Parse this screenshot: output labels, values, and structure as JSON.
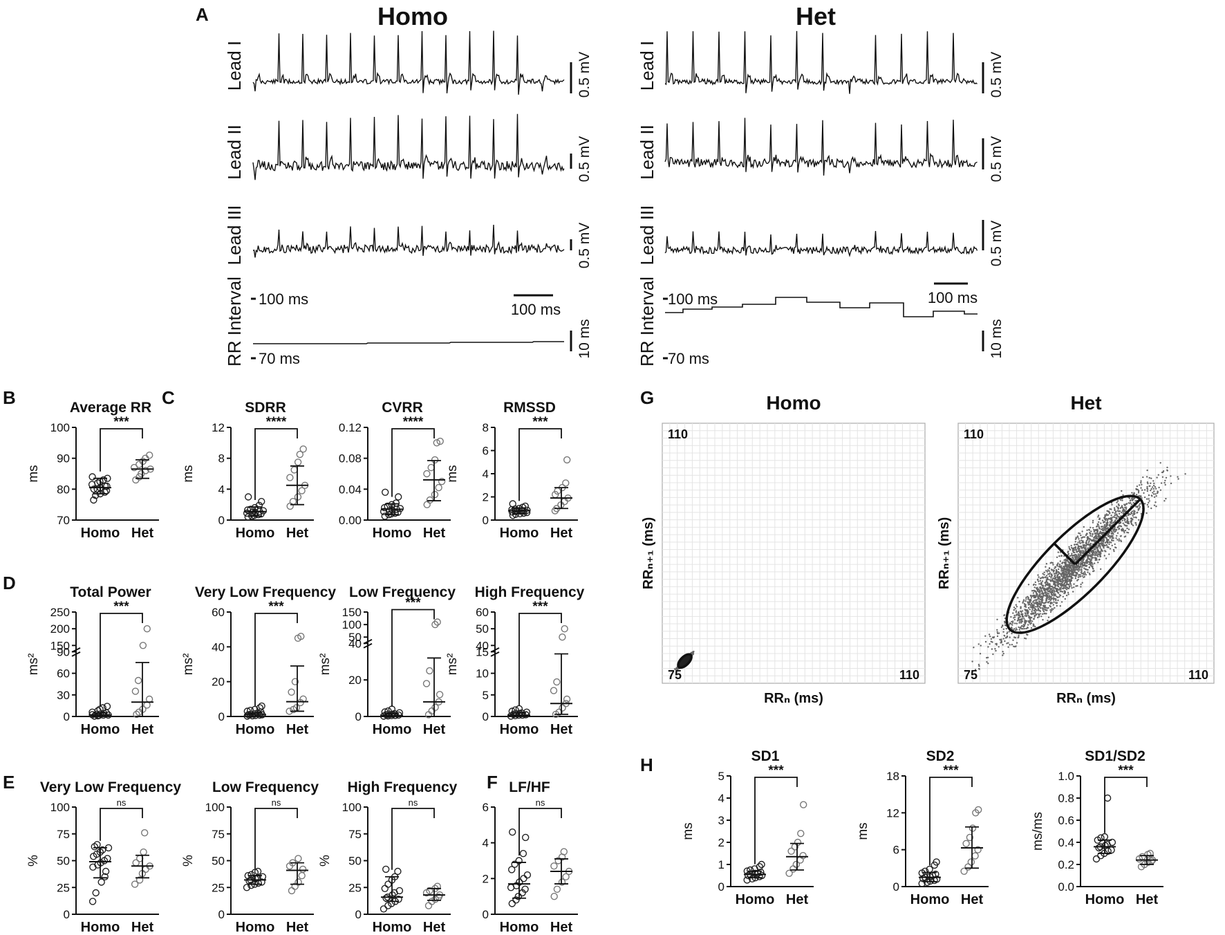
{
  "panel_letters": [
    "A",
    "B",
    "C",
    "D",
    "E",
    "F",
    "G",
    "H"
  ],
  "ecg": {
    "groups": [
      "Homo",
      "Het"
    ],
    "leads": [
      "Lead I",
      "Lead II",
      "Lead III"
    ],
    "rr_label": "RR Interval",
    "scale_mv": "0.5 mV",
    "scale_time": "100 ms",
    "scale_rr": "10 ms",
    "rr_top": "100 ms",
    "rr_bottom": "70 ms"
  },
  "chart_data": [
    {
      "id": "B",
      "type": "scatter",
      "title": "Average RR",
      "ylabel": "ms",
      "categories": [
        "Homo",
        "Het"
      ],
      "yticks": [
        "70",
        "80",
        "90",
        "100"
      ],
      "ylim": [
        70,
        100
      ],
      "significance": "***",
      "groups": [
        {
          "name": "Homo",
          "mean": 80.5,
          "sd_low": 78.5,
          "sd_high": 83.5,
          "points": [
            76.5,
            78,
            78.5,
            79,
            79.5,
            80,
            80,
            80.5,
            81,
            81,
            81.5,
            82,
            82.5,
            83,
            83.5,
            84
          ]
        },
        {
          "name": "Het",
          "mean": 86.5,
          "sd_low": 83.5,
          "sd_high": 89.5,
          "points": [
            83,
            84,
            85,
            86,
            86.5,
            87,
            88,
            89,
            90,
            91
          ]
        }
      ]
    },
    {
      "id": "SDRR",
      "type": "scatter",
      "title": "SDRR",
      "ylabel": "ms",
      "categories": [
        "Homo",
        "Het"
      ],
      "yticks": [
        "0",
        "4",
        "8",
        "12"
      ],
      "ylim": [
        0,
        12
      ],
      "significance": "****",
      "groups": [
        {
          "name": "Homo",
          "mean": 1.1,
          "sd_low": 0.5,
          "sd_high": 1.7,
          "points": [
            0.4,
            0.5,
            0.6,
            0.7,
            0.8,
            0.9,
            1.0,
            1.0,
            1.1,
            1.2,
            1.3,
            1.4,
            1.6,
            1.9,
            2.4,
            3.0
          ]
        },
        {
          "name": "Het",
          "mean": 4.5,
          "sd_low": 2.0,
          "sd_high": 7.0,
          "points": [
            1.8,
            2.4,
            3.0,
            3.8,
            4.5,
            5.5,
            6.5,
            7.5,
            8.5,
            9.2
          ]
        }
      ]
    },
    {
      "id": "CVRR",
      "type": "scatter",
      "title": "CVRR",
      "ylabel": "",
      "categories": [
        "Homo",
        "Het"
      ],
      "yticks": [
        "0.00",
        "0.04",
        "0.08",
        "0.12"
      ],
      "ylim": [
        0,
        0.12
      ],
      "significance": "****",
      "groups": [
        {
          "name": "Homo",
          "mean": 0.014,
          "sd_low": 0.007,
          "sd_high": 0.021,
          "points": [
            0.005,
            0.007,
            0.008,
            0.009,
            0.01,
            0.011,
            0.012,
            0.013,
            0.014,
            0.015,
            0.016,
            0.018,
            0.02,
            0.022,
            0.03,
            0.036
          ]
        },
        {
          "name": "Het",
          "mean": 0.052,
          "sd_low": 0.025,
          "sd_high": 0.077,
          "points": [
            0.02,
            0.026,
            0.033,
            0.042,
            0.05,
            0.06,
            0.068,
            0.078,
            0.1,
            0.102
          ]
        }
      ]
    },
    {
      "id": "RMSSD",
      "type": "scatter",
      "title": "RMSSD",
      "ylabel": "ms",
      "categories": [
        "Homo",
        "Het"
      ],
      "yticks": [
        "0",
        "2",
        "4",
        "6",
        "8"
      ],
      "ylim": [
        0,
        8
      ],
      "significance": "***",
      "groups": [
        {
          "name": "Homo",
          "mean": 0.8,
          "sd_low": 0.55,
          "sd_high": 1.05,
          "points": [
            0.4,
            0.5,
            0.55,
            0.6,
            0.65,
            0.7,
            0.75,
            0.8,
            0.8,
            0.85,
            0.9,
            0.95,
            1.0,
            1.1,
            1.2,
            1.4
          ]
        },
        {
          "name": "Het",
          "mean": 1.9,
          "sd_low": 1.0,
          "sd_high": 2.8,
          "points": [
            0.8,
            1.0,
            1.3,
            1.6,
            1.9,
            2.2,
            2.5,
            2.8,
            3.2,
            5.2
          ]
        }
      ]
    },
    {
      "id": "TP",
      "type": "scatter",
      "title": "Total Power",
      "ylabel": "ms²",
      "categories": [
        "Homo",
        "Het"
      ],
      "broken_axis": true,
      "yticks": [
        "0",
        "30",
        "60",
        "90",
        "150",
        "200",
        "250"
      ],
      "ylim": [
        0,
        250
      ],
      "significance": "***",
      "groups": [
        {
          "name": "Homo",
          "mean": 2,
          "sd_low": 0,
          "sd_high": 5,
          "points": [
            0.5,
            1,
            1.5,
            2,
            2,
            2.5,
            3,
            3.5,
            4,
            5,
            6,
            8,
            10,
            12,
            14
          ]
        },
        {
          "name": "Het",
          "mean": 20,
          "sd_low": 0,
          "sd_high": 75,
          "points": [
            3,
            6,
            10,
            16,
            24,
            35,
            50,
            150,
            200
          ]
        }
      ]
    },
    {
      "id": "VLF",
      "type": "scatter",
      "title": "Very Low Frequency",
      "ylabel": "ms²",
      "categories": [
        "Homo",
        "Het"
      ],
      "yticks": [
        "0",
        "20",
        "40",
        "60"
      ],
      "ylim": [
        0,
        60
      ],
      "significance": "***",
      "groups": [
        {
          "name": "Homo",
          "mean": 1,
          "sd_low": 0,
          "sd_high": 2,
          "points": [
            0.2,
            0.4,
            0.6,
            0.8,
            1,
            1,
            1.2,
            1.5,
            2,
            2.5,
            3,
            3.5,
            4,
            5,
            6
          ]
        },
        {
          "name": "Het",
          "mean": 8.5,
          "sd_low": 3,
          "sd_high": 29,
          "points": [
            3,
            4,
            5,
            8,
            10,
            14,
            20,
            45,
            46
          ]
        }
      ]
    },
    {
      "id": "LF_abs",
      "type": "scatter",
      "title": "Low Frequency",
      "ylabel": "ms²",
      "categories": [
        "Homo",
        "Het"
      ],
      "broken_axis": true,
      "yticks": [
        "0",
        "20",
        "40",
        "50",
        "100",
        "150"
      ],
      "ylim": [
        0,
        150
      ],
      "significance": "***",
      "groups": [
        {
          "name": "Homo",
          "mean": 0.5,
          "sd_low": 0,
          "sd_high": 1.5,
          "points": [
            0.2,
            0.3,
            0.5,
            0.6,
            0.8,
            1,
            1,
            1.2,
            1.5,
            2,
            2.5,
            3,
            4
          ]
        },
        {
          "name": "Het",
          "mean": 8,
          "sd_low": 0,
          "sd_high": 32,
          "points": [
            1,
            3,
            5,
            8,
            12,
            18,
            25,
            100,
            110
          ]
        }
      ]
    },
    {
      "id": "HF_abs",
      "type": "scatter",
      "title": "High Frequency",
      "ylabel": "ms²",
      "categories": [
        "Homo",
        "Het"
      ],
      "broken_axis": true,
      "yticks": [
        "0",
        "5",
        "10",
        "15",
        "40",
        "50",
        "60"
      ],
      "ylim": [
        0,
        60
      ],
      "significance": "***",
      "groups": [
        {
          "name": "Homo",
          "mean": 0.3,
          "sd_low": 0,
          "sd_high": 0.8,
          "points": [
            0.1,
            0.2,
            0.3,
            0.3,
            0.4,
            0.5,
            0.6,
            0.7,
            0.8,
            1,
            1.2,
            1.5,
            1.8
          ]
        },
        {
          "name": "Het",
          "mean": 3,
          "sd_low": 0.5,
          "sd_high": 14.5,
          "points": [
            0.5,
            1,
            2,
            3,
            4,
            6,
            8,
            45,
            50
          ]
        }
      ]
    },
    {
      "id": "VLF_pct",
      "type": "scatter",
      "title": "Very Low Frequency",
      "ylabel": "%",
      "categories": [
        "Homo",
        "Het"
      ],
      "yticks": [
        "0",
        "25",
        "50",
        "75",
        "100"
      ],
      "ylim": [
        0,
        100
      ],
      "significance": "ns",
      "groups": [
        {
          "name": "Homo",
          "mean": 49,
          "sd_low": 34,
          "sd_high": 62,
          "points": [
            12,
            20,
            30,
            35,
            40,
            44,
            46,
            48,
            50,
            52,
            54,
            56,
            58,
            60,
            62,
            63,
            65
          ]
        },
        {
          "name": "Het",
          "mean": 45,
          "sd_low": 34,
          "sd_high": 55,
          "points": [
            28,
            32,
            38,
            42,
            45,
            48,
            52,
            58,
            76
          ]
        }
      ]
    },
    {
      "id": "LF_pct",
      "type": "scatter",
      "title": "Low Frequency",
      "ylabel": "%",
      "categories": [
        "Homo",
        "Het"
      ],
      "yticks": [
        "0",
        "25",
        "50",
        "75",
        "100"
      ],
      "ylim": [
        0,
        100
      ],
      "significance": "ns",
      "groups": [
        {
          "name": "Homo",
          "mean": 32,
          "sd_low": 28,
          "sd_high": 36,
          "points": [
            25,
            27,
            28,
            29,
            30,
            31,
            32,
            33,
            34,
            35,
            36,
            37,
            39,
            40
          ]
        },
        {
          "name": "Het",
          "mean": 41,
          "sd_low": 28,
          "sd_high": 48,
          "points": [
            22,
            26,
            30,
            36,
            42,
            45,
            48,
            52
          ]
        }
      ]
    },
    {
      "id": "HF_pct",
      "type": "scatter",
      "title": "High Frequency",
      "ylabel": "%",
      "categories": [
        "Homo",
        "Het"
      ],
      "yticks": [
        "0",
        "25",
        "50",
        "75",
        "100"
      ],
      "ylim": [
        0,
        100
      ],
      "significance": "ns",
      "groups": [
        {
          "name": "Homo",
          "mean": 16,
          "sd_low": 12,
          "sd_high": 35,
          "points": [
            5,
            8,
            10,
            12,
            14,
            15,
            16,
            18,
            20,
            22,
            24,
            28,
            32,
            35,
            40,
            42
          ]
        },
        {
          "name": "Het",
          "mean": 18,
          "sd_low": 13,
          "sd_high": 24,
          "points": [
            8,
            12,
            14,
            16,
            18,
            20,
            22,
            24,
            26
          ]
        }
      ]
    },
    {
      "id": "LFHF",
      "type": "scatter",
      "title": "LF/HF",
      "ylabel": "",
      "categories": [
        "Homo",
        "Het"
      ],
      "yticks": [
        "0",
        "2",
        "4",
        "6"
      ],
      "ylim": [
        0,
        6
      ],
      "significance": "ns",
      "groups": [
        {
          "name": "Homo",
          "mean": 1.7,
          "sd_low": 0.9,
          "sd_high": 2.9,
          "points": [
            0.6,
            0.8,
            1.0,
            1.2,
            1.4,
            1.5,
            1.6,
            1.8,
            2.0,
            2.2,
            2.5,
            2.8,
            3.0,
            3.4,
            4.3,
            4.6
          ]
        },
        {
          "name": "Het",
          "mean": 2.4,
          "sd_low": 1.7,
          "sd_high": 3.1,
          "points": [
            1.0,
            1.4,
            1.8,
            2.1,
            2.4,
            2.7,
            3.0,
            3.2,
            3.5
          ]
        }
      ]
    },
    {
      "id": "SD1",
      "type": "scatter",
      "title": "SD1",
      "ylabel": "ms",
      "categories": [
        "Homo",
        "Het"
      ],
      "yticks": [
        "0",
        "1",
        "2",
        "3",
        "4",
        "5"
      ],
      "ylim": [
        0,
        5
      ],
      "significance": "***",
      "groups": [
        {
          "name": "Homo",
          "mean": 0.55,
          "sd_low": 0.4,
          "sd_high": 0.7,
          "points": [
            0.3,
            0.35,
            0.4,
            0.45,
            0.5,
            0.5,
            0.55,
            0.6,
            0.6,
            0.65,
            0.7,
            0.75,
            0.8,
            0.9,
            1.0
          ]
        },
        {
          "name": "Het",
          "mean": 1.35,
          "sd_low": 0.75,
          "sd_high": 1.95,
          "points": [
            0.6,
            0.8,
            1.0,
            1.2,
            1.4,
            1.6,
            1.8,
            2.0,
            2.4,
            3.7
          ]
        }
      ]
    },
    {
      "id": "SD2",
      "type": "scatter",
      "title": "SD2",
      "ylabel": "ms",
      "categories": [
        "Homo",
        "Het"
      ],
      "yticks": [
        "0",
        "6",
        "12",
        "18"
      ],
      "ylim": [
        0,
        18
      ],
      "significance": "***",
      "groups": [
        {
          "name": "Homo",
          "mean": 1.5,
          "sd_low": 0.8,
          "sd_high": 2.3,
          "points": [
            0.5,
            0.7,
            0.9,
            1.0,
            1.2,
            1.3,
            1.5,
            1.6,
            1.8,
            2.0,
            2.2,
            2.5,
            2.8,
            3.5,
            4.0
          ]
        },
        {
          "name": "Het",
          "mean": 6.3,
          "sd_low": 3.0,
          "sd_high": 9.7,
          "points": [
            2.5,
            3.2,
            4.0,
            5.0,
            6.0,
            7.0,
            8.0,
            9.5,
            12.0,
            12.5
          ]
        }
      ]
    },
    {
      "id": "SD1SD2",
      "type": "scatter",
      "title": "SD1/SD2",
      "ylabel": "ms/ms",
      "categories": [
        "Homo",
        "Het"
      ],
      "yticks": [
        "0.0",
        "0.2",
        "0.4",
        "0.6",
        "0.8",
        "1.0"
      ],
      "ylim": [
        0,
        1
      ],
      "significance": "***",
      "groups": [
        {
          "name": "Homo",
          "mean": 0.36,
          "sd_low": 0.3,
          "sd_high": 0.42,
          "points": [
            0.25,
            0.28,
            0.3,
            0.32,
            0.33,
            0.35,
            0.36,
            0.37,
            0.38,
            0.4,
            0.42,
            0.44,
            0.45,
            0.8
          ]
        },
        {
          "name": "Het",
          "mean": 0.24,
          "sd_low": 0.2,
          "sd_high": 0.28,
          "points": [
            0.18,
            0.2,
            0.22,
            0.23,
            0.24,
            0.25,
            0.27,
            0.29,
            0.3
          ]
        }
      ]
    },
    {
      "id": "G_Homo",
      "type": "scatter",
      "title": "Homo",
      "xlabel": "RRₙ (ms)",
      "ylabel": "RRₙ₊₁ (ms)",
      "xlim": [
        75,
        110
      ],
      "ylim": [
        75,
        110
      ],
      "corner_min": "75",
      "corner_max": "110",
      "cloud_center": [
        78,
        78
      ],
      "spread": 0.4
    },
    {
      "id": "G_Het",
      "type": "scatter",
      "title": "Het",
      "xlabel": "RRₙ (ms)",
      "ylabel": "RRₙ₊₁ (ms)",
      "xlim": [
        75,
        110
      ],
      "ylim": [
        75,
        110
      ],
      "corner_min": "75",
      "corner_max": "110",
      "cloud_center": [
        91,
        91
      ],
      "spread": 4.5
    }
  ]
}
